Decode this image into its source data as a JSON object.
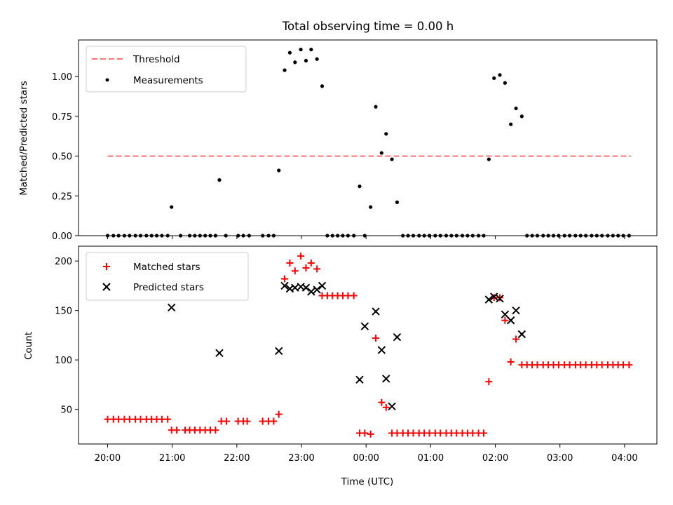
{
  "title": "Total observing time = 0.00 h",
  "chart_data": [
    {
      "type": "scatter",
      "ylabel": "Matched/Predicted stars",
      "ylim": [
        0,
        1.23
      ],
      "xlim_hours": [
        19.55,
        28.5
      ],
      "yticks": [
        "0.00",
        "0.25",
        "0.50",
        "0.75",
        "1.00"
      ],
      "yticks_values": [
        0,
        0.25,
        0.5,
        0.75,
        1.0
      ],
      "legend_placement": "upper-left",
      "threshold": {
        "name": "Threshold",
        "value": 0.5,
        "x": [
          20.0,
          28.1
        ],
        "color": "#ff7373"
      },
      "series": [
        {
          "name": "Measurements",
          "color": "#000000",
          "points": [
            [
              20.0,
              0
            ],
            [
              20.09,
              0
            ],
            [
              20.17,
              0
            ],
            [
              20.26,
              0
            ],
            [
              20.34,
              0
            ],
            [
              20.43,
              0
            ],
            [
              20.51,
              0
            ],
            [
              20.6,
              0
            ],
            [
              20.68,
              0
            ],
            [
              20.76,
              0
            ],
            [
              20.84,
              0
            ],
            [
              20.93,
              0
            ],
            [
              20.99,
              0.18
            ],
            [
              21.13,
              0
            ],
            [
              21.27,
              0
            ],
            [
              21.35,
              0
            ],
            [
              21.43,
              0
            ],
            [
              21.51,
              0
            ],
            [
              21.59,
              0
            ],
            [
              21.67,
              0
            ],
            [
              21.73,
              0.35
            ],
            [
              21.83,
              0
            ],
            [
              22.02,
              0
            ],
            [
              22.1,
              0
            ],
            [
              22.19,
              0
            ],
            [
              22.4,
              0
            ],
            [
              22.49,
              0
            ],
            [
              22.57,
              0
            ],
            [
              22.65,
              0.41
            ],
            [
              22.74,
              1.04
            ],
            [
              22.82,
              1.15
            ],
            [
              22.9,
              1.09
            ],
            [
              22.99,
              1.17
            ],
            [
              23.07,
              1.1
            ],
            [
              23.15,
              1.17
            ],
            [
              23.24,
              1.11
            ],
            [
              23.32,
              0.94
            ],
            [
              23.4,
              0
            ],
            [
              23.48,
              0
            ],
            [
              23.56,
              0
            ],
            [
              23.64,
              0
            ],
            [
              23.72,
              0
            ],
            [
              23.81,
              0
            ],
            [
              23.9,
              0.31
            ],
            [
              23.98,
              0
            ],
            [
              24.07,
              0.18
            ],
            [
              24.15,
              0.81
            ],
            [
              24.24,
              0.52
            ],
            [
              24.31,
              0.64
            ],
            [
              24.4,
              0.48
            ],
            [
              24.48,
              0.21
            ],
            [
              24.57,
              0
            ],
            [
              24.65,
              0
            ],
            [
              24.73,
              0
            ],
            [
              24.82,
              0
            ],
            [
              24.9,
              0
            ],
            [
              24.98,
              0
            ],
            [
              25.07,
              0
            ],
            [
              25.15,
              0
            ],
            [
              25.24,
              0
            ],
            [
              25.32,
              0
            ],
            [
              25.4,
              0
            ],
            [
              25.49,
              0
            ],
            [
              25.57,
              0
            ],
            [
              25.65,
              0
            ],
            [
              25.74,
              0
            ],
            [
              25.82,
              0
            ],
            [
              25.9,
              0.48
            ],
            [
              25.98,
              0.99
            ],
            [
              26.07,
              1.01
            ],
            [
              26.15,
              0.96
            ],
            [
              26.24,
              0.7
            ],
            [
              26.32,
              0.8
            ],
            [
              26.41,
              0.75
            ],
            [
              26.49,
              0
            ],
            [
              26.57,
              0
            ],
            [
              26.65,
              0
            ],
            [
              26.74,
              0
            ],
            [
              26.82,
              0
            ],
            [
              26.9,
              0
            ],
            [
              26.98,
              0
            ],
            [
              27.07,
              0
            ],
            [
              27.15,
              0
            ],
            [
              27.24,
              0
            ],
            [
              27.32,
              0
            ],
            [
              27.4,
              0
            ],
            [
              27.49,
              0
            ],
            [
              27.57,
              0
            ],
            [
              27.65,
              0
            ],
            [
              27.74,
              0
            ],
            [
              27.82,
              0
            ],
            [
              27.9,
              0
            ],
            [
              27.98,
              0
            ],
            [
              28.07,
              0
            ]
          ]
        }
      ]
    },
    {
      "type": "scatter",
      "xlabel": "Time (UTC)",
      "ylabel": "Count",
      "ylim": [
        15,
        215
      ],
      "xlim_hours": [
        19.55,
        28.5
      ],
      "yticks": [
        "50",
        "100",
        "150",
        "200"
      ],
      "yticks_values": [
        50,
        100,
        150,
        200
      ],
      "xticks": [
        "20:00",
        "21:00",
        "22:00",
        "23:00",
        "00:00",
        "01:00",
        "02:00",
        "03:00",
        "04:00"
      ],
      "xticks_hours": [
        20,
        21,
        22,
        23,
        24,
        25,
        26,
        27,
        28
      ],
      "legend_placement": "upper-left",
      "series": [
        {
          "name": "Matched stars",
          "marker": "plus",
          "color": "#ff0000",
          "points": [
            [
              20.0,
              40
            ],
            [
              20.09,
              40
            ],
            [
              20.17,
              40
            ],
            [
              20.26,
              40
            ],
            [
              20.34,
              40
            ],
            [
              20.43,
              40
            ],
            [
              20.51,
              40
            ],
            [
              20.6,
              40
            ],
            [
              20.68,
              40
            ],
            [
              20.76,
              40
            ],
            [
              20.84,
              40
            ],
            [
              20.93,
              40
            ],
            [
              20.99,
              29
            ],
            [
              21.07,
              29
            ],
            [
              21.2,
              29
            ],
            [
              21.27,
              29
            ],
            [
              21.35,
              29
            ],
            [
              21.43,
              29
            ],
            [
              21.51,
              29
            ],
            [
              21.59,
              29
            ],
            [
              21.67,
              29
            ],
            [
              21.76,
              38
            ],
            [
              21.84,
              38
            ],
            [
              22.02,
              38
            ],
            [
              22.1,
              38
            ],
            [
              22.16,
              38
            ],
            [
              22.4,
              38
            ],
            [
              22.49,
              38
            ],
            [
              22.57,
              38
            ],
            [
              22.65,
              45
            ],
            [
              22.74,
              182
            ],
            [
              22.82,
              198
            ],
            [
              22.9,
              190
            ],
            [
              22.99,
              205
            ],
            [
              23.07,
              193
            ],
            [
              23.15,
              198
            ],
            [
              23.24,
              192
            ],
            [
              23.32,
              165
            ],
            [
              23.4,
              165
            ],
            [
              23.48,
              165
            ],
            [
              23.56,
              165
            ],
            [
              23.64,
              165
            ],
            [
              23.72,
              165
            ],
            [
              23.81,
              165
            ],
            [
              23.9,
              26
            ],
            [
              23.98,
              26
            ],
            [
              24.07,
              25
            ],
            [
              24.15,
              122
            ],
            [
              24.24,
              57
            ],
            [
              24.31,
              52
            ],
            [
              24.4,
              26
            ],
            [
              24.48,
              26
            ],
            [
              24.57,
              26
            ],
            [
              24.65,
              26
            ],
            [
              24.73,
              26
            ],
            [
              24.82,
              26
            ],
            [
              24.9,
              26
            ],
            [
              24.98,
              26
            ],
            [
              25.07,
              26
            ],
            [
              25.15,
              26
            ],
            [
              25.24,
              26
            ],
            [
              25.32,
              26
            ],
            [
              25.4,
              26
            ],
            [
              25.49,
              26
            ],
            [
              25.57,
              26
            ],
            [
              25.65,
              26
            ],
            [
              25.74,
              26
            ],
            [
              25.82,
              26
            ],
            [
              25.9,
              78
            ],
            [
              25.98,
              163
            ],
            [
              26.07,
              163
            ],
            [
              26.15,
              140
            ],
            [
              26.24,
              98
            ],
            [
              26.32,
              121
            ],
            [
              26.41,
              95
            ],
            [
              26.49,
              95
            ],
            [
              26.57,
              95
            ],
            [
              26.65,
              95
            ],
            [
              26.74,
              95
            ],
            [
              26.82,
              95
            ],
            [
              26.9,
              95
            ],
            [
              26.98,
              95
            ],
            [
              27.07,
              95
            ],
            [
              27.15,
              95
            ],
            [
              27.24,
              95
            ],
            [
              27.32,
              95
            ],
            [
              27.4,
              95
            ],
            [
              27.49,
              95
            ],
            [
              27.57,
              95
            ],
            [
              27.65,
              95
            ],
            [
              27.74,
              95
            ],
            [
              27.82,
              95
            ],
            [
              27.9,
              95
            ],
            [
              27.98,
              95
            ],
            [
              28.07,
              95
            ]
          ]
        },
        {
          "name": "Predicted stars",
          "marker": "cross",
          "color": "#000000",
          "points": [
            [
              20.99,
              153
            ],
            [
              21.73,
              107
            ],
            [
              22.65,
              109
            ],
            [
              22.74,
              175
            ],
            [
              22.82,
              172
            ],
            [
              22.9,
              173
            ],
            [
              22.99,
              174
            ],
            [
              23.07,
              173
            ],
            [
              23.15,
              169
            ],
            [
              23.24,
              171
            ],
            [
              23.32,
              175
            ],
            [
              23.9,
              80
            ],
            [
              23.98,
              134
            ],
            [
              24.15,
              149
            ],
            [
              24.24,
              110
            ],
            [
              24.31,
              81
            ],
            [
              24.4,
              53
            ],
            [
              24.48,
              123
            ],
            [
              25.9,
              161
            ],
            [
              25.98,
              164
            ],
            [
              26.07,
              162
            ],
            [
              26.15,
              146
            ],
            [
              26.24,
              140
            ],
            [
              26.32,
              150
            ],
            [
              26.41,
              126
            ]
          ]
        }
      ]
    }
  ]
}
